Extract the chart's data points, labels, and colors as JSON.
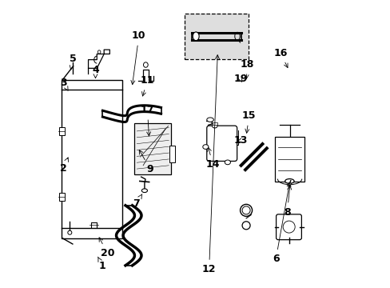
{
  "bg_color": "#ffffff",
  "line_color": "#000000",
  "font_size": 9,
  "arrows": {
    "1": [
      0.175,
      0.072,
      0.155,
      0.112
    ],
    "2": [
      0.038,
      0.415,
      0.055,
      0.455
    ],
    "3": [
      0.038,
      0.715,
      0.055,
      0.685
    ],
    "4": [
      0.15,
      0.76,
      0.15,
      0.728
    ],
    "5": [
      0.072,
      0.798,
      0.063,
      0.758
    ],
    "6": [
      0.782,
      0.098,
      0.832,
      0.375
    ],
    "7": [
      0.293,
      0.292,
      0.318,
      0.332
    ],
    "8": [
      0.822,
      0.262,
      0.832,
      0.365
    ],
    "9": [
      0.342,
      0.412,
      0.298,
      0.488
    ],
    "10": [
      0.302,
      0.878,
      0.278,
      0.698
    ],
    "11": [
      0.332,
      0.722,
      0.312,
      0.658
    ],
    "12": [
      0.548,
      0.062,
      0.578,
      0.822
    ],
    "13": [
      0.658,
      0.512,
      0.638,
      0.508
    ],
    "14": [
      0.562,
      0.428,
      0.542,
      0.498
    ],
    "15": [
      0.688,
      0.598,
      0.678,
      0.528
    ],
    "16": [
      0.798,
      0.818,
      0.828,
      0.758
    ],
    "17": [
      0.332,
      0.618,
      0.338,
      0.518
    ],
    "18": [
      0.682,
      0.778,
      0.678,
      0.718
    ],
    "19": [
      0.658,
      0.728,
      0.666,
      0.708
    ],
    "20": [
      0.192,
      0.118,
      0.158,
      0.182
    ]
  }
}
